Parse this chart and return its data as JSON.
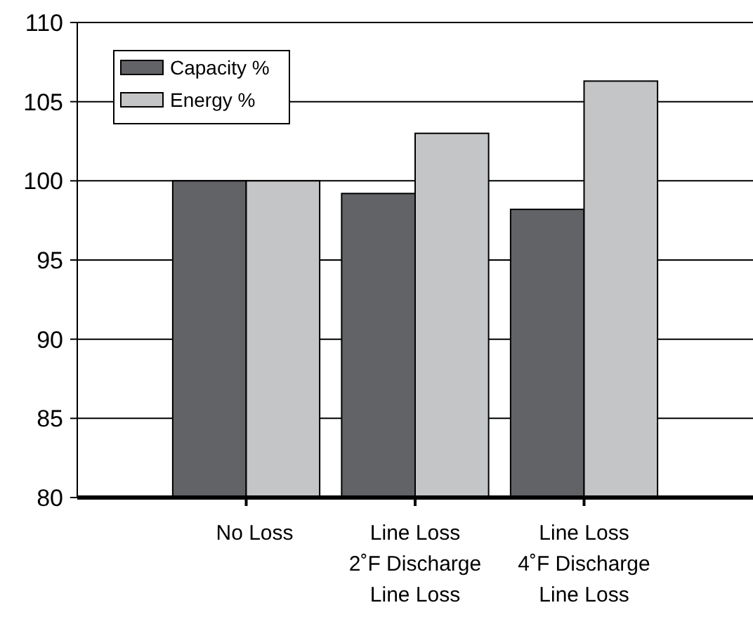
{
  "chart_data": {
    "type": "bar",
    "categories": [
      "No Loss",
      "Line Loss\n2˚F Discharge\nLine Loss",
      "Line Loss\n4˚F Discharge\nLine Loss"
    ],
    "series": [
      {
        "name": "Capacity %",
        "color": "#626366",
        "values": [
          100,
          99.2,
          98.2
        ]
      },
      {
        "name": "Energy %",
        "color": "#c4c5c7",
        "values": [
          100,
          103.0,
          106.3
        ]
      }
    ],
    "ylim": [
      80,
      110
    ],
    "yticks": [
      80,
      85,
      90,
      95,
      100,
      105,
      110
    ],
    "grid": "y",
    "legend": "top left"
  }
}
